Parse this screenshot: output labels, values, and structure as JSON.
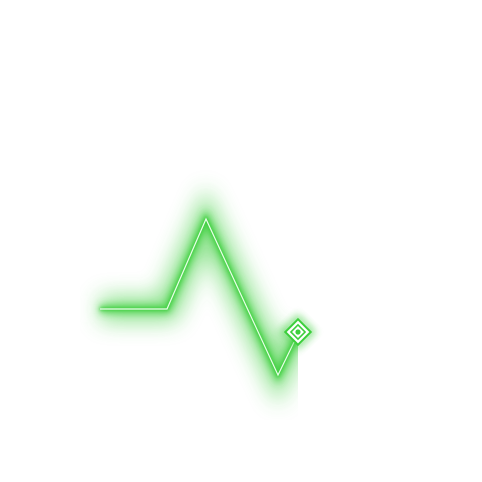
{
  "icon": {
    "name": "heartbeat-pulse-icon",
    "glow_color": "#3ccf3c",
    "core_color": "#eaffea",
    "marker": "diamond-marker-icon"
  }
}
